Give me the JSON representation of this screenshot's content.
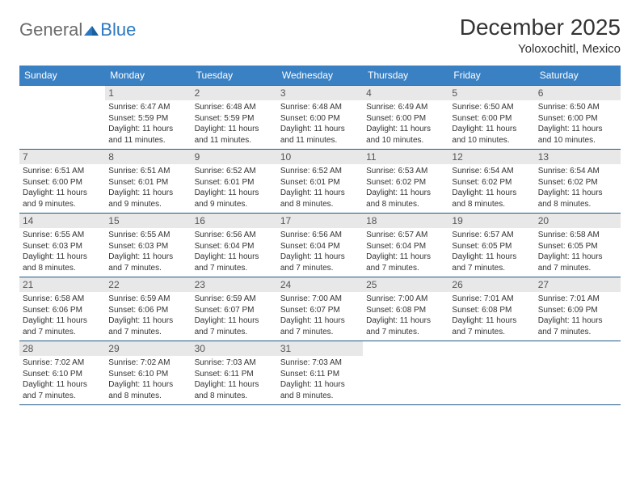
{
  "logo": {
    "part1": "General",
    "part2": "Blue"
  },
  "title": "December 2025",
  "location": "Yoloxochitl, Mexico",
  "colors": {
    "header_bg": "#3a81c4",
    "header_text": "#ffffff",
    "border": "#1f5a8a",
    "daynum_bg": "#e8e8e8",
    "logo_gray": "#6b6b6b",
    "logo_blue": "#2b78c2",
    "page_bg": "#ffffff"
  },
  "weekdays": [
    "Sunday",
    "Monday",
    "Tuesday",
    "Wednesday",
    "Thursday",
    "Friday",
    "Saturday"
  ],
  "weeks": [
    [
      null,
      {
        "n": "1",
        "sunrise": "6:47 AM",
        "sunset": "5:59 PM",
        "daylight": "11 hours and 11 minutes."
      },
      {
        "n": "2",
        "sunrise": "6:48 AM",
        "sunset": "5:59 PM",
        "daylight": "11 hours and 11 minutes."
      },
      {
        "n": "3",
        "sunrise": "6:48 AM",
        "sunset": "6:00 PM",
        "daylight": "11 hours and 11 minutes."
      },
      {
        "n": "4",
        "sunrise": "6:49 AM",
        "sunset": "6:00 PM",
        "daylight": "11 hours and 10 minutes."
      },
      {
        "n": "5",
        "sunrise": "6:50 AM",
        "sunset": "6:00 PM",
        "daylight": "11 hours and 10 minutes."
      },
      {
        "n": "6",
        "sunrise": "6:50 AM",
        "sunset": "6:00 PM",
        "daylight": "11 hours and 10 minutes."
      }
    ],
    [
      {
        "n": "7",
        "sunrise": "6:51 AM",
        "sunset": "6:00 PM",
        "daylight": "11 hours and 9 minutes."
      },
      {
        "n": "8",
        "sunrise": "6:51 AM",
        "sunset": "6:01 PM",
        "daylight": "11 hours and 9 minutes."
      },
      {
        "n": "9",
        "sunrise": "6:52 AM",
        "sunset": "6:01 PM",
        "daylight": "11 hours and 9 minutes."
      },
      {
        "n": "10",
        "sunrise": "6:52 AM",
        "sunset": "6:01 PM",
        "daylight": "11 hours and 8 minutes."
      },
      {
        "n": "11",
        "sunrise": "6:53 AM",
        "sunset": "6:02 PM",
        "daylight": "11 hours and 8 minutes."
      },
      {
        "n": "12",
        "sunrise": "6:54 AM",
        "sunset": "6:02 PM",
        "daylight": "11 hours and 8 minutes."
      },
      {
        "n": "13",
        "sunrise": "6:54 AM",
        "sunset": "6:02 PM",
        "daylight": "11 hours and 8 minutes."
      }
    ],
    [
      {
        "n": "14",
        "sunrise": "6:55 AM",
        "sunset": "6:03 PM",
        "daylight": "11 hours and 8 minutes."
      },
      {
        "n": "15",
        "sunrise": "6:55 AM",
        "sunset": "6:03 PM",
        "daylight": "11 hours and 7 minutes."
      },
      {
        "n": "16",
        "sunrise": "6:56 AM",
        "sunset": "6:04 PM",
        "daylight": "11 hours and 7 minutes."
      },
      {
        "n": "17",
        "sunrise": "6:56 AM",
        "sunset": "6:04 PM",
        "daylight": "11 hours and 7 minutes."
      },
      {
        "n": "18",
        "sunrise": "6:57 AM",
        "sunset": "6:04 PM",
        "daylight": "11 hours and 7 minutes."
      },
      {
        "n": "19",
        "sunrise": "6:57 AM",
        "sunset": "6:05 PM",
        "daylight": "11 hours and 7 minutes."
      },
      {
        "n": "20",
        "sunrise": "6:58 AM",
        "sunset": "6:05 PM",
        "daylight": "11 hours and 7 minutes."
      }
    ],
    [
      {
        "n": "21",
        "sunrise": "6:58 AM",
        "sunset": "6:06 PM",
        "daylight": "11 hours and 7 minutes."
      },
      {
        "n": "22",
        "sunrise": "6:59 AM",
        "sunset": "6:06 PM",
        "daylight": "11 hours and 7 minutes."
      },
      {
        "n": "23",
        "sunrise": "6:59 AM",
        "sunset": "6:07 PM",
        "daylight": "11 hours and 7 minutes."
      },
      {
        "n": "24",
        "sunrise": "7:00 AM",
        "sunset": "6:07 PM",
        "daylight": "11 hours and 7 minutes."
      },
      {
        "n": "25",
        "sunrise": "7:00 AM",
        "sunset": "6:08 PM",
        "daylight": "11 hours and 7 minutes."
      },
      {
        "n": "26",
        "sunrise": "7:01 AM",
        "sunset": "6:08 PM",
        "daylight": "11 hours and 7 minutes."
      },
      {
        "n": "27",
        "sunrise": "7:01 AM",
        "sunset": "6:09 PM",
        "daylight": "11 hours and 7 minutes."
      }
    ],
    [
      {
        "n": "28",
        "sunrise": "7:02 AM",
        "sunset": "6:10 PM",
        "daylight": "11 hours and 7 minutes."
      },
      {
        "n": "29",
        "sunrise": "7:02 AM",
        "sunset": "6:10 PM",
        "daylight": "11 hours and 8 minutes."
      },
      {
        "n": "30",
        "sunrise": "7:03 AM",
        "sunset": "6:11 PM",
        "daylight": "11 hours and 8 minutes."
      },
      {
        "n": "31",
        "sunrise": "7:03 AM",
        "sunset": "6:11 PM",
        "daylight": "11 hours and 8 minutes."
      },
      null,
      null,
      null
    ]
  ],
  "labels": {
    "sunrise": "Sunrise:",
    "sunset": "Sunset:",
    "daylight": "Daylight:"
  }
}
